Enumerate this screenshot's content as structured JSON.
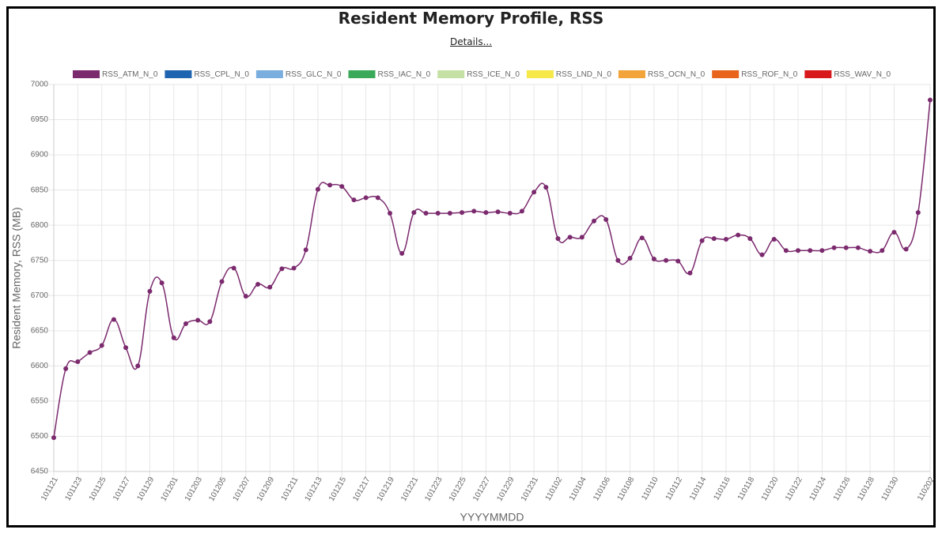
{
  "details_label": "Details...",
  "chart_data": {
    "type": "line",
    "title": "Resident Memory Profile, RSS",
    "x_label": "YYYYMMDD",
    "y_label": "Resident Memory, RSS (MB)",
    "categories": [
      "101121",
      null,
      "101123",
      null,
      "101125",
      null,
      "101127",
      null,
      "101129",
      null,
      "101201",
      null,
      "101203",
      null,
      "101205",
      null,
      "101207",
      null,
      "101209",
      null,
      "101211",
      null,
      "101213",
      null,
      "101215",
      null,
      "101217",
      null,
      "101219",
      null,
      "101221",
      null,
      "101223",
      null,
      "101225",
      null,
      "101227",
      null,
      "101229",
      null,
      "101231",
      null,
      "110102",
      null,
      "110104",
      null,
      "110106",
      null,
      "110108",
      null,
      "110110",
      null,
      "110112",
      null,
      "110114",
      null,
      "110116",
      null,
      "110118",
      null,
      "110120",
      null,
      "110122",
      null,
      "110124",
      null,
      "110126",
      null,
      "110128",
      null,
      "110130",
      null,
      null,
      "110202"
    ],
    "series": [
      {
        "name": "RSS_ATM_N_0",
        "color": "#7b2a6e",
        "values": [
          6498,
          6596,
          6606,
          6619,
          6629,
          6666,
          6626,
          6600,
          6706,
          6718,
          6640,
          6660,
          6665,
          6663,
          6720,
          6739,
          6699,
          6716,
          6712,
          6738,
          6739,
          6765,
          6851,
          6857,
          6855,
          6836,
          6839,
          6839,
          6817,
          6760,
          6818,
          6817,
          6817,
          6817,
          6818,
          6820,
          6818,
          6819,
          6817,
          6820,
          6847,
          6854,
          6781,
          6783,
          6783,
          6806,
          6808,
          6750,
          6753,
          6782,
          6752,
          6750,
          6749,
          6732,
          6778,
          6781,
          6780,
          6786,
          6781,
          6758,
          6780,
          6764,
          6764,
          6764,
          6764,
          6768,
          6768,
          6768,
          6763,
          6764,
          6790,
          6766,
          6818,
          6978
        ]
      },
      {
        "name": "RSS_CPL_N_0",
        "color": "#1f64b0"
      },
      {
        "name": "RSS_GLC_N_0",
        "color": "#7aaede"
      },
      {
        "name": "RSS_IAC_N_0",
        "color": "#3aaa5a"
      },
      {
        "name": "RSS_ICE_N_0",
        "color": "#c5e0a5"
      },
      {
        "name": "RSS_LND_N_0",
        "color": "#f7e84a"
      },
      {
        "name": "RSS_OCN_N_0",
        "color": "#f2a33a"
      },
      {
        "name": "RSS_ROF_N_0",
        "color": "#e8641c"
      },
      {
        "name": "RSS_WAV_N_0",
        "color": "#d7191c"
      }
    ],
    "ylim": [
      6450,
      7000
    ],
    "yticks": [
      6450,
      6500,
      6550,
      6600,
      6650,
      6700,
      6750,
      6800,
      6850,
      6900,
      6950,
      7000
    ],
    "grid": true,
    "legend": "top"
  }
}
